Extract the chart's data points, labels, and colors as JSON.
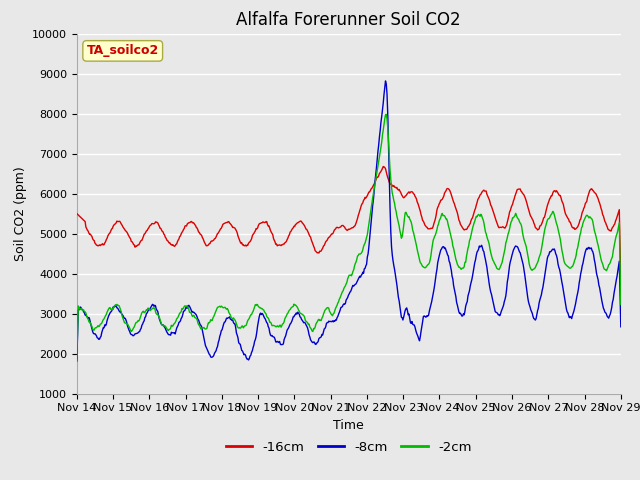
{
  "title": "Alfalfa Forerunner Soil CO2",
  "xlabel": "Time",
  "ylabel": "Soil CO2 (ppm)",
  "ylim": [
    1000,
    10000
  ],
  "yticks": [
    1000,
    2000,
    3000,
    4000,
    5000,
    6000,
    7000,
    8000,
    9000,
    10000
  ],
  "xtick_labels": [
    "Nov 14",
    "Nov 15",
    "Nov 16",
    "Nov 17",
    "Nov 18",
    "Nov 19",
    "Nov 20",
    "Nov 21",
    "Nov 22",
    "Nov 23",
    "Nov 24",
    "Nov 25",
    "Nov 26",
    "Nov 27",
    "Nov 28",
    "Nov 29"
  ],
  "legend_labels": [
    "-16cm",
    "-8cm",
    "-2cm"
  ],
  "line_colors": [
    "#dd0000",
    "#0000cc",
    "#00bb00"
  ],
  "annotation_text": "TA_soilco2",
  "annotation_color": "#cc0000",
  "annotation_bg": "#ffffcc",
  "annotation_edge": "#aaaa44",
  "bg_color": "#e8e8e8",
  "grid_color": "#ffffff",
  "title_fontsize": 12,
  "label_fontsize": 9,
  "tick_fontsize": 8
}
